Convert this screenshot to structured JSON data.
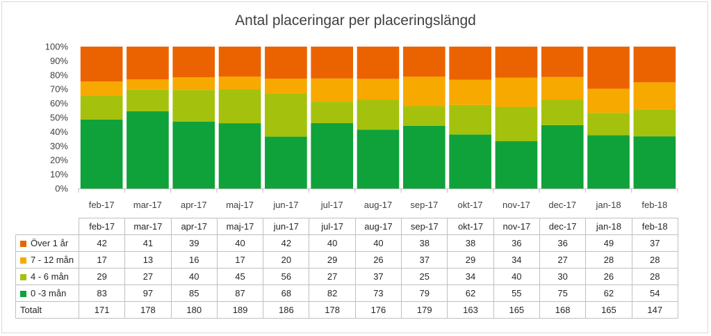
{
  "chart_data": {
    "type": "bar",
    "stacked": "percent",
    "title": "Antal placeringar per placeringslängd",
    "categories": [
      "feb-17",
      "mar-17",
      "apr-17",
      "maj-17",
      "jun-17",
      "jul-17",
      "aug-17",
      "sep-17",
      "okt-17",
      "nov-17",
      "dec-17",
      "jan-18",
      "feb-18"
    ],
    "y_ticks": [
      "0%",
      "10%",
      "20%",
      "30%",
      "40%",
      "50%",
      "60%",
      "70%",
      "80%",
      "90%",
      "100%"
    ],
    "ylim": [
      0,
      100
    ],
    "grid": false,
    "legend": "data-table-below",
    "series": [
      {
        "name": "0 -3 mån",
        "color": "#10a23a",
        "values": [
          83,
          97,
          85,
          87,
          68,
          82,
          73,
          79,
          62,
          55,
          75,
          62,
          54
        ]
      },
      {
        "name": "4 - 6 mån",
        "color": "#a4c20d",
        "values": [
          29,
          27,
          40,
          45,
          56,
          27,
          37,
          25,
          34,
          40,
          30,
          26,
          28
        ]
      },
      {
        "name": "7 - 12 mån",
        "color": "#f8a900",
        "values": [
          17,
          13,
          16,
          17,
          20,
          29,
          26,
          37,
          29,
          34,
          27,
          28,
          28
        ]
      },
      {
        "name": "Över 1 år",
        "color": "#eb6300",
        "values": [
          42,
          41,
          39,
          40,
          42,
          40,
          40,
          38,
          38,
          36,
          36,
          49,
          37
        ]
      }
    ],
    "table": {
      "row_order": [
        3,
        2,
        1,
        0
      ],
      "total_label": "Totalt",
      "totals": [
        171,
        178,
        180,
        189,
        186,
        178,
        176,
        179,
        163,
        165,
        168,
        165,
        147
      ]
    }
  }
}
